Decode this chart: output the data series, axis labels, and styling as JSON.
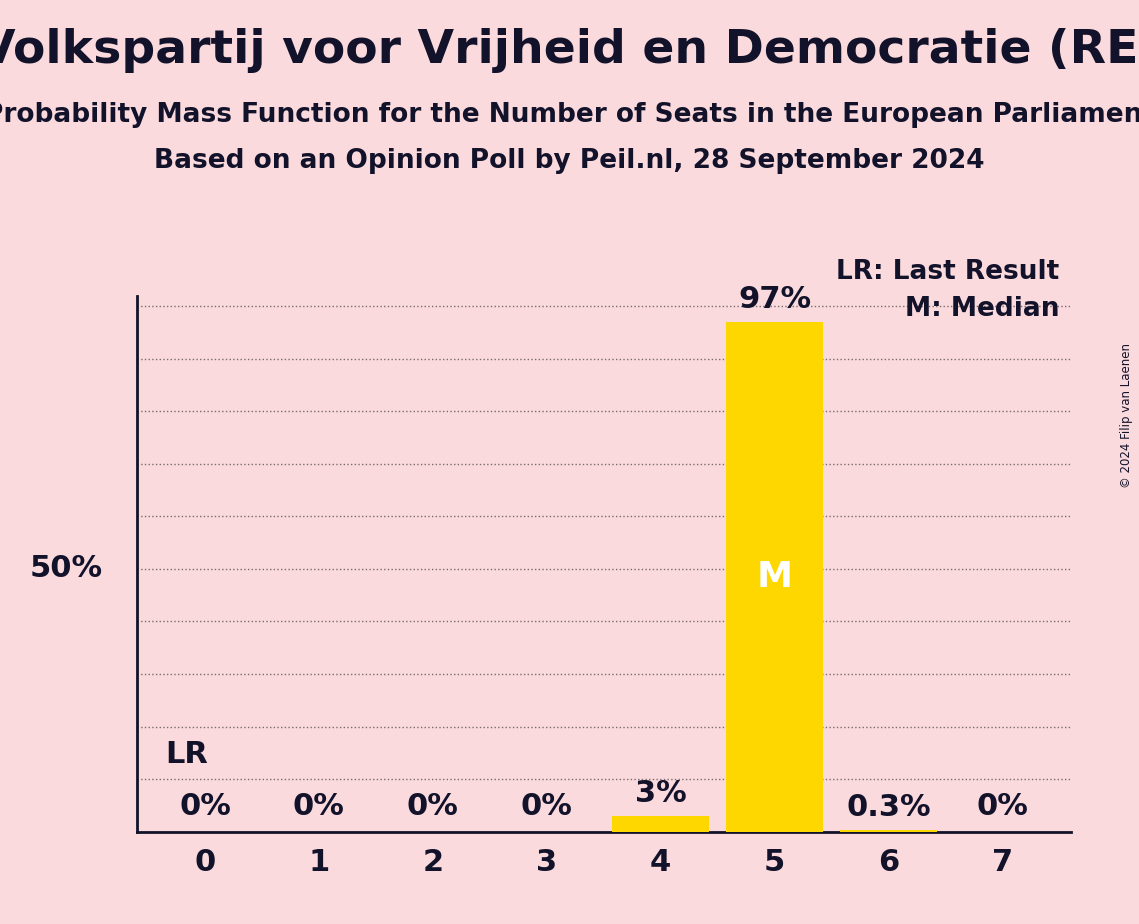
{
  "title": "Volkspartij voor Vrijheid en Democratie (RE)",
  "subtitle1": "Probability Mass Function for the Number of Seats in the European Parliament",
  "subtitle2": "Based on an Opinion Poll by Peil.nl, 28 September 2024",
  "copyright": "© 2024 Filip van Laenen",
  "seats": [
    0,
    1,
    2,
    3,
    4,
    5,
    6,
    7
  ],
  "probabilities": [
    0.0,
    0.0,
    0.0,
    0.0,
    3.0,
    97.0,
    0.3,
    0.0
  ],
  "bar_color": "#FFD700",
  "background_color": "#FADADD",
  "text_color": "#12122a",
  "median_seat": 5,
  "last_result_seat": 0,
  "legend_lr": "LR: Last Result",
  "legend_m": "M: Median",
  "yticks": [
    0,
    10,
    20,
    30,
    40,
    50,
    60,
    70,
    80,
    90,
    100
  ],
  "ylabel_50": "50%",
  "title_fontsize": 34,
  "subtitle_fontsize": 19,
  "tick_fontsize": 22,
  "annot_fontsize": 22,
  "median_label_fontsize": 26,
  "legend_fontsize": 19,
  "lr_fontsize": 22
}
